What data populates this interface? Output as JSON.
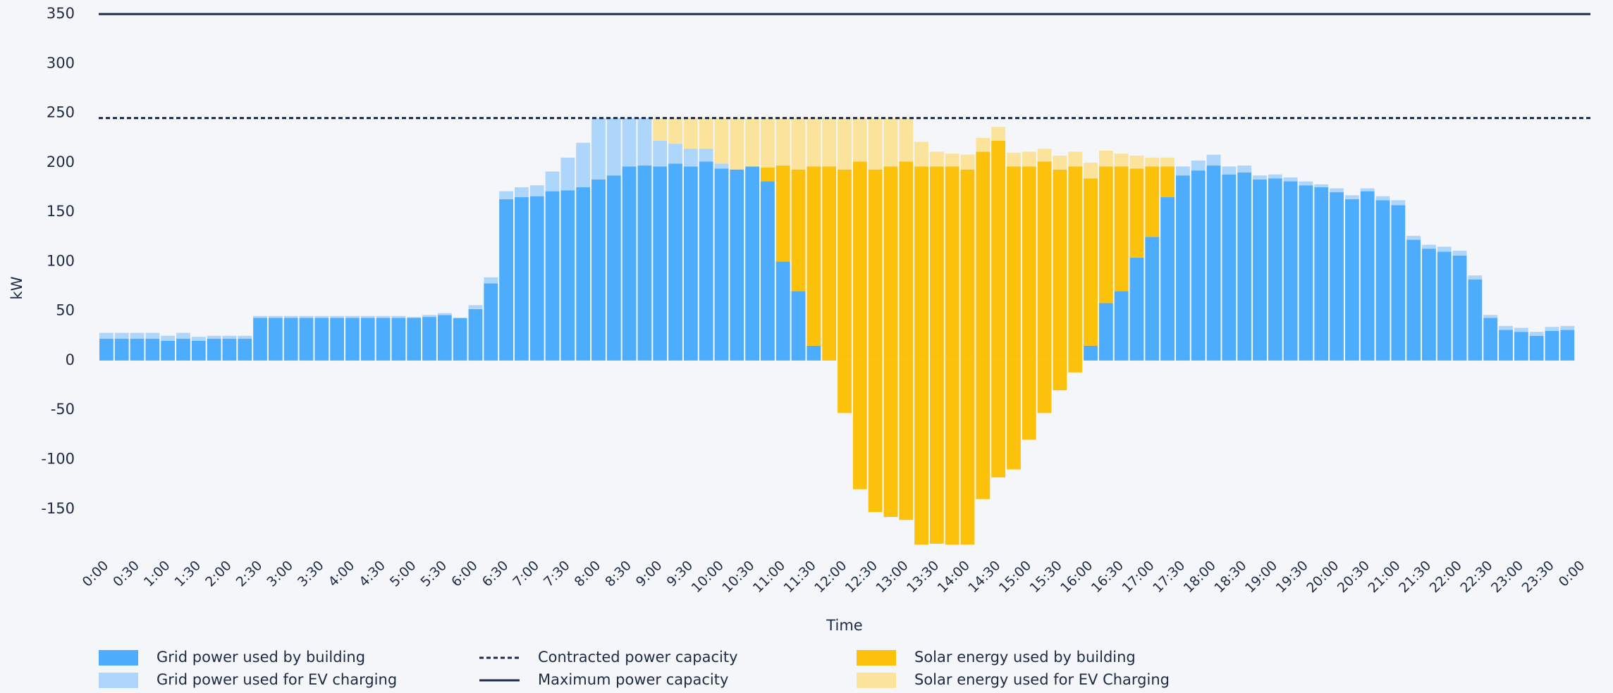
{
  "chart_data": {
    "type": "stacked_bar",
    "y_label": "kW",
    "x_label": "Time",
    "ylim": [
      -190,
      350
    ],
    "yticks": [
      350,
      300,
      250,
      200,
      150,
      100,
      50,
      0,
      -50,
      -100,
      -150
    ],
    "categories": [
      "0:00",
      null,
      "0:30",
      null,
      "1:00",
      null,
      "1:30",
      null,
      "2:00",
      null,
      "2:30",
      null,
      "3:00",
      null,
      "3:30",
      null,
      "4:00",
      null,
      "4:30",
      null,
      "5:00",
      null,
      "5:30",
      null,
      "6:00",
      null,
      "6:30",
      null,
      "7:00",
      null,
      "7:30",
      null,
      "8:00",
      null,
      "8:30",
      null,
      "9:00",
      null,
      "9:30",
      null,
      "10:00",
      null,
      "10:30",
      null,
      "11:00",
      null,
      "11:30",
      null,
      "12:00",
      null,
      "12:30",
      null,
      "13:00",
      null,
      "13:30",
      null,
      "14:00",
      null,
      "14:30",
      null,
      "15:00",
      null,
      "15:30",
      null,
      "16:00",
      null,
      "16:30",
      null,
      "17:00",
      null,
      "17:30",
      null,
      "18:00",
      null,
      "18:30",
      null,
      "19:00",
      null,
      "19:30",
      null,
      "20:00",
      null,
      "20:30",
      null,
      "21:00",
      null,
      "21:30",
      null,
      "22:00",
      null,
      "22:30",
      null,
      "23:00",
      null,
      "23:30",
      null,
      "0:00"
    ],
    "series": [
      {
        "name": "Grid power used by building",
        "color": "#4dadfc",
        "values": [
          22,
          22,
          22,
          22,
          20,
          22,
          20,
          22,
          22,
          22,
          43,
          43,
          43,
          43,
          43,
          43,
          43,
          43,
          43,
          43,
          43,
          44,
          46,
          43,
          52,
          78,
          163,
          165,
          166,
          171,
          172,
          175,
          183,
          187,
          196,
          197,
          196,
          199,
          196,
          201,
          194,
          193,
          196,
          181,
          100,
          70,
          15,
          null,
          null,
          null,
          null,
          null,
          null,
          null,
          null,
          null,
          null,
          null,
          null,
          null,
          null,
          null,
          null,
          null,
          15,
          58,
          70,
          104,
          125,
          165,
          187,
          192,
          197,
          188,
          190,
          183,
          184,
          181,
          177,
          175,
          170,
          163,
          171,
          162,
          157,
          122,
          113,
          110,
          106,
          82,
          43,
          31,
          29,
          25,
          30,
          31,
          null
        ]
      },
      {
        "name": "Grid power used for EV charging",
        "color": "#aed6fb",
        "values": [
          6,
          6,
          6,
          6,
          5,
          6,
          4,
          3,
          3,
          3,
          2,
          2,
          2,
          2,
          2,
          2,
          2,
          2,
          2,
          2,
          1,
          2,
          2,
          null,
          4,
          6,
          8,
          10,
          11,
          20,
          33,
          45,
          62,
          58,
          49,
          48,
          26,
          20,
          18,
          13,
          5,
          null,
          null,
          null,
          null,
          null,
          null,
          null,
          null,
          null,
          null,
          null,
          null,
          null,
          null,
          null,
          null,
          null,
          null,
          null,
          null,
          null,
          null,
          null,
          null,
          null,
          null,
          null,
          null,
          null,
          9,
          10,
          11,
          8,
          7,
          4,
          4,
          4,
          4,
          3,
          4,
          4,
          3,
          4,
          5,
          4,
          4,
          5,
          5,
          4,
          3,
          4,
          4,
          4,
          4,
          4,
          null
        ]
      },
      {
        "name": "Solar energy used by building",
        "color": "#fcc10b",
        "values": [
          null,
          null,
          null,
          null,
          null,
          null,
          null,
          null,
          null,
          null,
          null,
          null,
          null,
          null,
          null,
          null,
          null,
          null,
          null,
          null,
          null,
          null,
          null,
          null,
          null,
          null,
          null,
          null,
          null,
          null,
          null,
          null,
          null,
          null,
          null,
          null,
          null,
          null,
          null,
          null,
          null,
          null,
          null,
          14,
          97,
          123,
          181,
          196,
          193,
          201,
          193,
          196,
          201,
          196,
          196,
          196,
          193,
          211,
          222,
          196,
          196,
          201,
          193,
          196,
          169,
          138,
          126,
          90,
          71,
          31,
          null,
          null,
          null,
          null,
          null,
          null,
          null,
          null,
          null,
          null,
          null,
          null,
          null,
          null,
          null,
          null,
          null,
          null,
          null,
          null,
          null,
          null,
          null,
          null,
          null,
          null,
          null
        ]
      },
      {
        "name": "Solar energy used for EV Charging",
        "color": "#fbe39c",
        "values": [
          null,
          null,
          null,
          null,
          null,
          null,
          null,
          null,
          null,
          null,
          null,
          null,
          null,
          null,
          null,
          null,
          null,
          null,
          null,
          null,
          null,
          null,
          null,
          null,
          null,
          null,
          null,
          null,
          null,
          null,
          null,
          null,
          null,
          null,
          null,
          null,
          23,
          26,
          31,
          31,
          46,
          52,
          49,
          50,
          48,
          52,
          49,
          49,
          52,
          44,
          52,
          49,
          44,
          25,
          15,
          13,
          15,
          14,
          14,
          14,
          15,
          13,
          14,
          15,
          16,
          16,
          13,
          13,
          9,
          9,
          null,
          null,
          null,
          null,
          null,
          null,
          null,
          null,
          null,
          null,
          null,
          null,
          null,
          null,
          null,
          null,
          null,
          null,
          null,
          null,
          null,
          null,
          null,
          null,
          null,
          null,
          null
        ]
      }
    ],
    "export": [
      null,
      null,
      null,
      null,
      null,
      null,
      null,
      null,
      null,
      null,
      null,
      null,
      null,
      null,
      null,
      null,
      null,
      null,
      null,
      null,
      null,
      null,
      null,
      null,
      null,
      null,
      null,
      null,
      null,
      null,
      null,
      null,
      null,
      null,
      null,
      null,
      null,
      null,
      null,
      null,
      null,
      null,
      null,
      null,
      null,
      null,
      null,
      null,
      -53,
      -130,
      -153,
      -158,
      -161,
      -186,
      -185,
      -186,
      -186,
      -140,
      -118,
      -110,
      -80,
      -53,
      -30,
      -12,
      null,
      null,
      null,
      null,
      null,
      null,
      null,
      null,
      null,
      null,
      null,
      null,
      null,
      null,
      null,
      null,
      null,
      null,
      null,
      null,
      null,
      null,
      null,
      null,
      null,
      null,
      null,
      null,
      null,
      null,
      null,
      null,
      null
    ],
    "export_color": "#fcc10b",
    "reference_lines": [
      {
        "name": "Contracted power capacity",
        "value": 245,
        "style": "dashed",
        "color": "#1b2a4a"
      },
      {
        "name": "Maximum power capacity",
        "value": 350,
        "style": "solid",
        "color": "#1b2a4a"
      }
    ]
  }
}
